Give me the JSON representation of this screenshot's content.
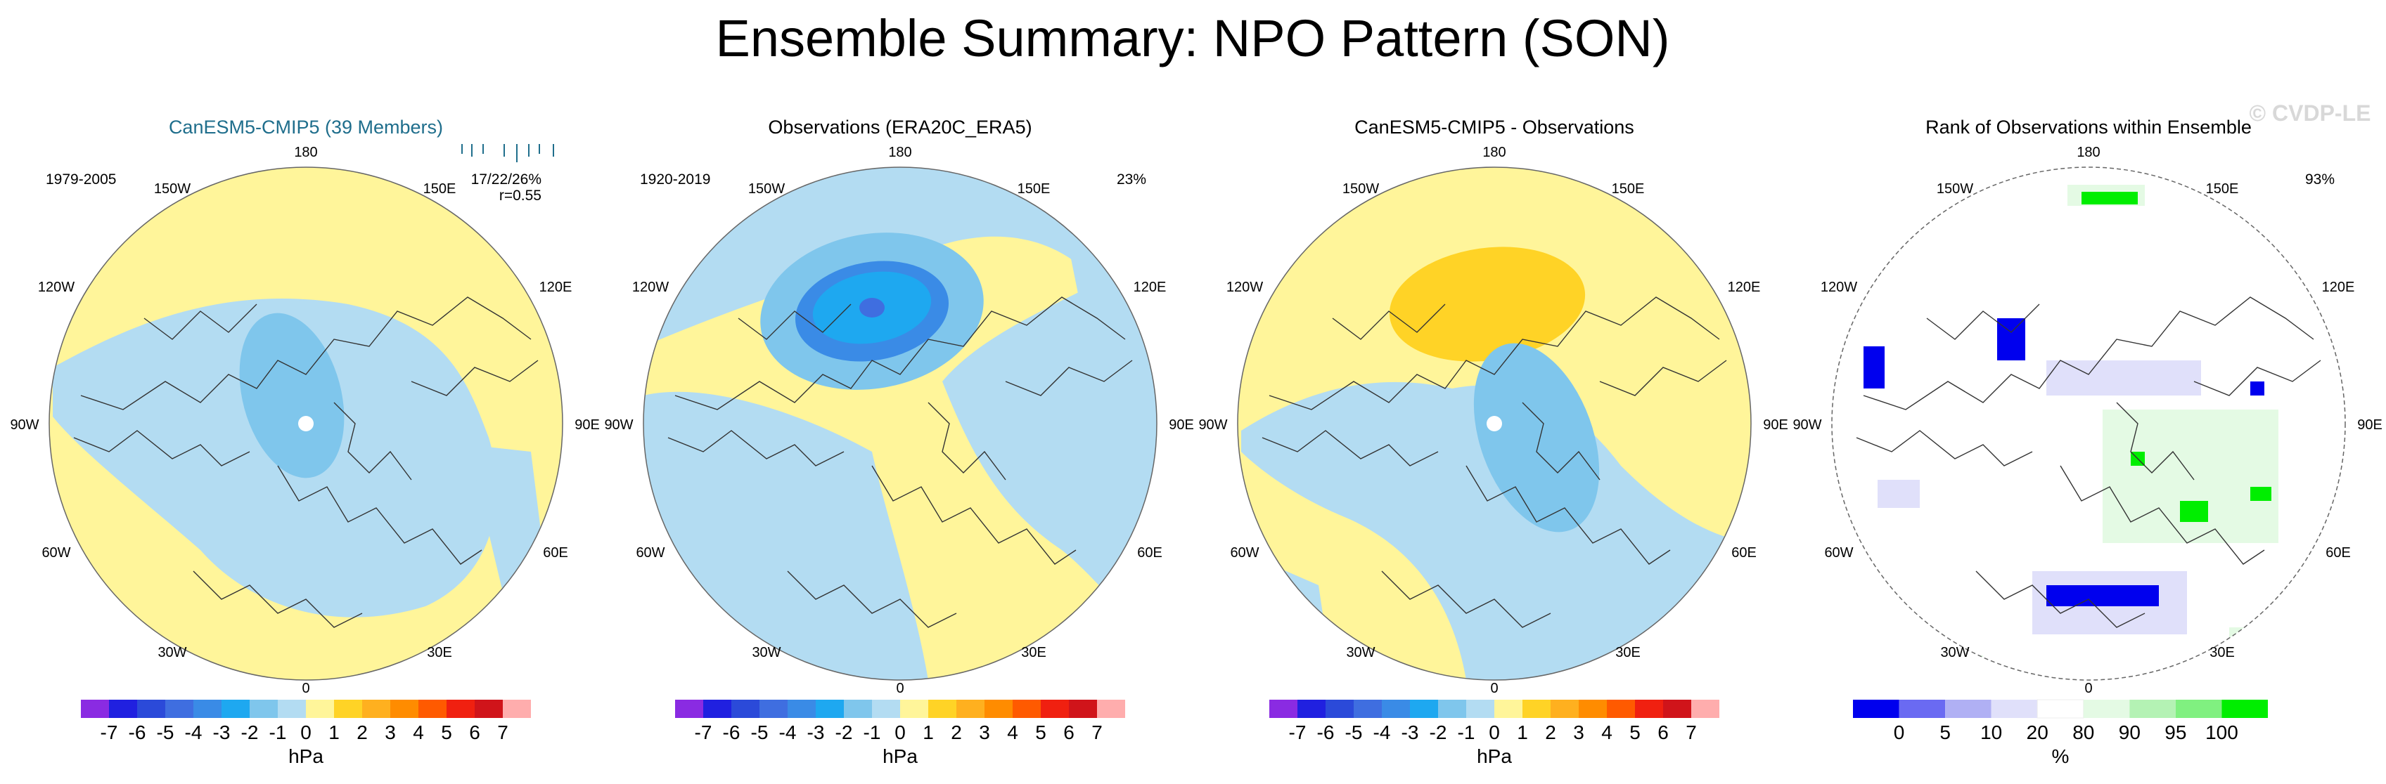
{
  "figure": {
    "title": "Ensemble Summary: NPO Pattern (SON)",
    "watermark": "© CVDP-LE"
  },
  "palette": {
    "land_outline": "#333333",
    "circle_outline": "#666666",
    "background": "#ffffff"
  },
  "chart_data": [
    {
      "type": "heatmap",
      "projection": "north-polar-stereographic",
      "title": "CanESM5-CMIP5 (39 Members)",
      "title_color": "#1f6e8c",
      "period": "1979-2005",
      "corner_right_line1": "17/22/26%",
      "corner_right_line2": "r=0.55",
      "spread_ticks_note": "ensemble member values shown as tick marks",
      "dominant_sign": "positive pacific, negative arctic",
      "base_fill": "#fff59a",
      "lon_labels": [
        "180",
        "150W",
        "150E",
        "120W",
        "120E",
        "90W",
        "90E",
        "60W",
        "60E",
        "30W",
        "30E",
        "0"
      ],
      "colorbar": {
        "labels": [
          "-7",
          "-6",
          "-5",
          "-4",
          "-3",
          "-2",
          "-1",
          "0",
          "1",
          "2",
          "3",
          "4",
          "5",
          "6",
          "7"
        ],
        "colors": [
          "#8a2be2",
          "#2020e0",
          "#2b4ad9",
          "#3f6ee0",
          "#3a8be6",
          "#1ea8f0",
          "#7fc6ec",
          "#b3dcf2",
          "#fff59a",
          "#ffd326",
          "#ffb01f",
          "#ff8c00",
          "#ff5a00",
          "#f02010",
          "#d0141a",
          "#ffadad"
        ],
        "units": "hPa"
      }
    },
    {
      "type": "heatmap",
      "projection": "north-polar-stereographic",
      "title": "Observations (ERA20C_ERA5)",
      "title_color": "#000000",
      "period": "1920-2019",
      "corner_right_line1": "23%",
      "corner_right_line2": "",
      "base_fill": "#b3dcf2",
      "lon_labels": [
        "180",
        "150W",
        "150E",
        "120W",
        "120E",
        "90W",
        "90E",
        "60W",
        "60E",
        "30W",
        "30E",
        "0"
      ],
      "colorbar": {
        "labels": [
          "-7",
          "-6",
          "-5",
          "-4",
          "-3",
          "-2",
          "-1",
          "0",
          "1",
          "2",
          "3",
          "4",
          "5",
          "6",
          "7"
        ],
        "colors": [
          "#8a2be2",
          "#2020e0",
          "#2b4ad9",
          "#3f6ee0",
          "#3a8be6",
          "#1ea8f0",
          "#7fc6ec",
          "#b3dcf2",
          "#fff59a",
          "#ffd326",
          "#ffb01f",
          "#ff8c00",
          "#ff5a00",
          "#f02010",
          "#d0141a",
          "#ffadad"
        ],
        "units": "hPa"
      }
    },
    {
      "type": "heatmap",
      "projection": "north-polar-stereographic",
      "title": "CanESM5-CMIP5 - Observations",
      "title_color": "#000000",
      "period": "",
      "corner_right_line1": "",
      "corner_right_line2": "",
      "base_fill": "#fff59a",
      "lon_labels": [
        "180",
        "150W",
        "150E",
        "120W",
        "120E",
        "90W",
        "90E",
        "60W",
        "60E",
        "30W",
        "30E",
        "0"
      ],
      "colorbar": {
        "labels": [
          "-7",
          "-6",
          "-5",
          "-4",
          "-3",
          "-2",
          "-1",
          "0",
          "1",
          "2",
          "3",
          "4",
          "5",
          "6",
          "7"
        ],
        "colors": [
          "#8a2be2",
          "#2020e0",
          "#2b4ad9",
          "#3f6ee0",
          "#3a8be6",
          "#1ea8f0",
          "#7fc6ec",
          "#b3dcf2",
          "#fff59a",
          "#ffd326",
          "#ffb01f",
          "#ff8c00",
          "#ff5a00",
          "#f02010",
          "#d0141a",
          "#ffadad"
        ],
        "units": "hPa"
      }
    },
    {
      "type": "heatmap",
      "projection": "north-polar-stereographic",
      "title": "Rank of Observations within Ensemble",
      "title_color": "#000000",
      "period": "",
      "corner_right_line1": "93%",
      "corner_right_line2": "",
      "base_fill": "#ffffff",
      "lon_labels": [
        "180",
        "150W",
        "150E",
        "120W",
        "120E",
        "90W",
        "90E",
        "60W",
        "60E",
        "30W",
        "30E",
        "0"
      ],
      "colorbar": {
        "labels": [
          "0",
          "5",
          "10",
          "20",
          "80",
          "90",
          "95",
          "100"
        ],
        "colors": [
          "#0000ee",
          "#6a6af2",
          "#b0b0f4",
          "#e0e0fa",
          "#ffffff",
          "#e4fae4",
          "#b4f2b4",
          "#80f080",
          "#00ee00"
        ],
        "units": "%"
      }
    }
  ]
}
